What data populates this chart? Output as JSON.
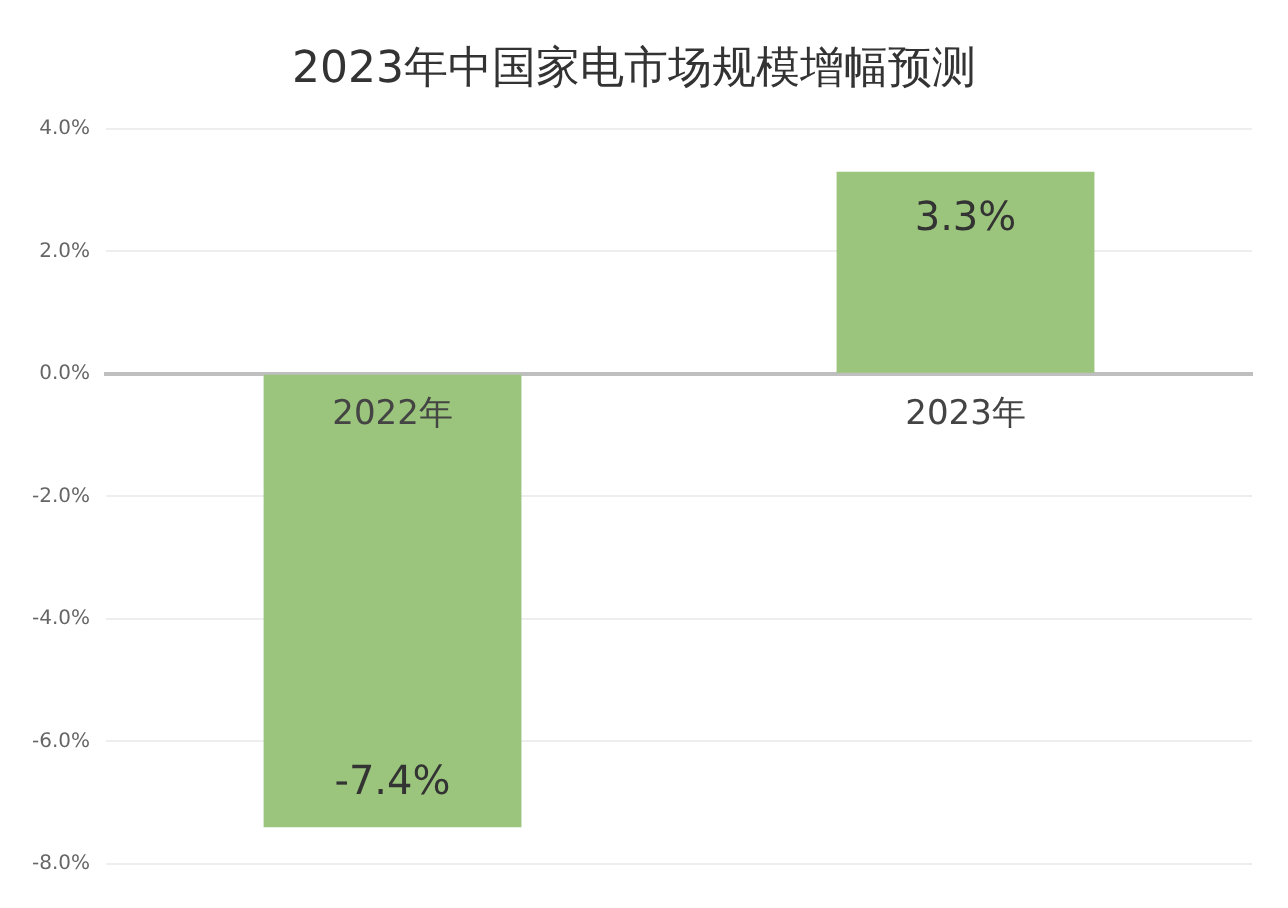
{
  "chart_data": {
    "type": "bar",
    "title": "2023年中国家电市场规模增幅预测",
    "categories": [
      "2022年",
      "2023年"
    ],
    "values": [
      -7.4,
      3.3
    ],
    "value_labels": [
      "-7.4%",
      "3.3%"
    ],
    "color": "#9bc57c",
    "ylim": [
      -8,
      4
    ],
    "yticks": [
      {
        "value": -8,
        "label": "-8.0%"
      },
      {
        "value": -6,
        "label": "-6.0%"
      },
      {
        "value": -4,
        "label": "-4.0%"
      },
      {
        "value": -2,
        "label": "-2.0%"
      },
      {
        "value": 0,
        "label": "0.0%"
      },
      {
        "value": 2,
        "label": "2.0%"
      },
      {
        "value": 4,
        "label": "4.0%"
      }
    ],
    "grid": "y",
    "legend": false
  }
}
